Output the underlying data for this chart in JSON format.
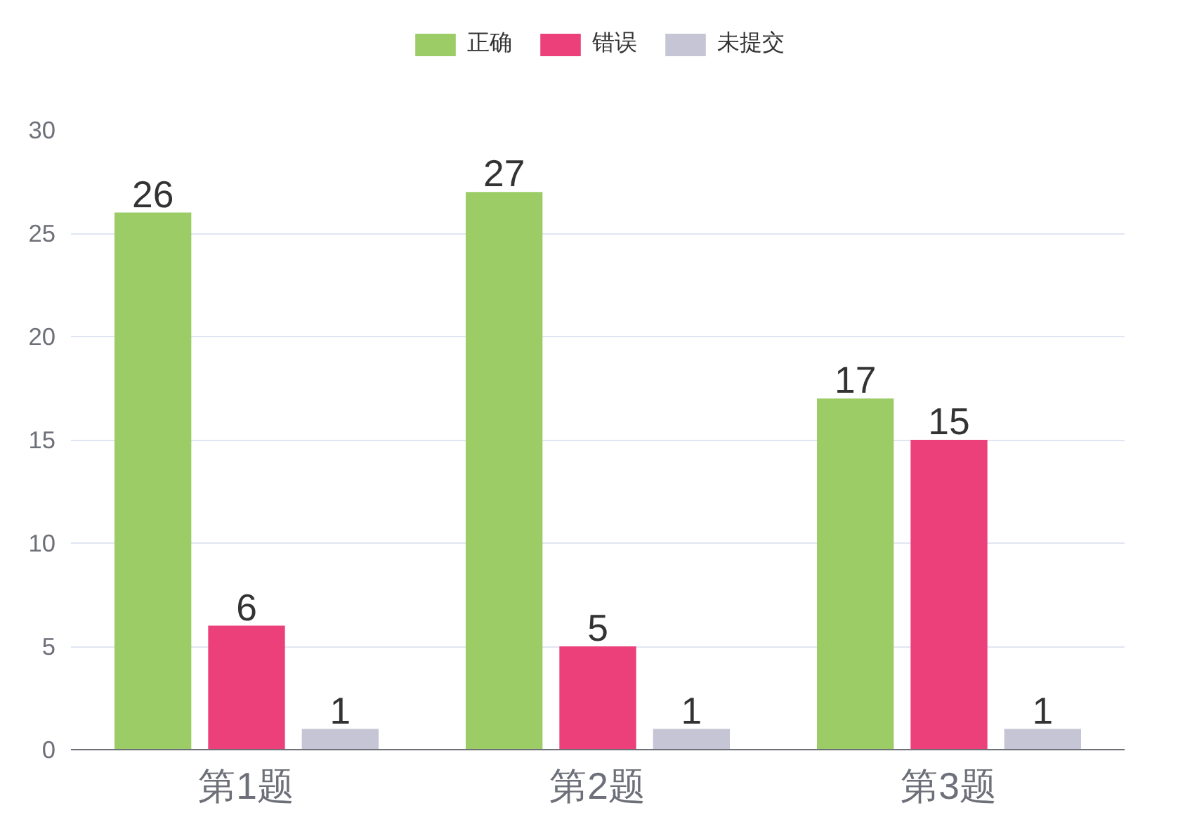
{
  "chart_data": {
    "type": "bar",
    "categories": [
      "第1题",
      "第2题",
      "第3题"
    ],
    "series": [
      {
        "name": "正确",
        "color": "#9ccc65",
        "values": [
          26,
          27,
          17
        ]
      },
      {
        "name": "错误",
        "color": "#ec407a",
        "values": [
          6,
          5,
          15
        ]
      },
      {
        "name": "未提交",
        "color": "#c5c5d5",
        "values": [
          1,
          1,
          1
        ]
      }
    ],
    "ylim": [
      0,
      30
    ],
    "yticks": [
      0,
      5,
      10,
      15,
      20,
      25,
      30
    ],
    "grid": "y",
    "legend": "top",
    "data_labels": true
  }
}
